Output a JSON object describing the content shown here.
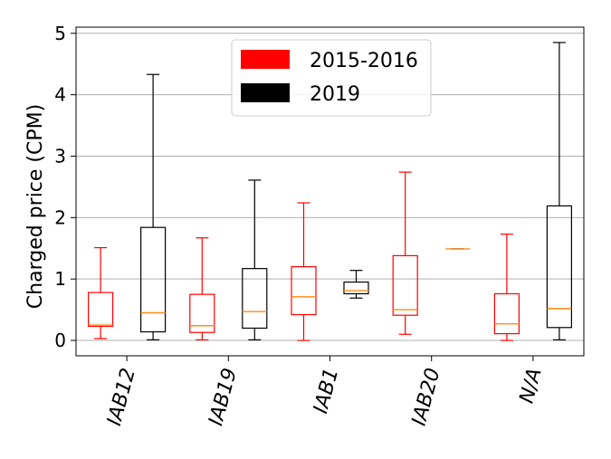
{
  "chart_data": {
    "type": "box",
    "ylabel": "Charged price (CPM)",
    "ylim": [
      -0.25,
      5.1
    ],
    "yticks": [
      0,
      1,
      2,
      3,
      4,
      5
    ],
    "grid": "y",
    "legend_position": "top-center",
    "median_color": "#ff8c1a",
    "categories": [
      "IAB12",
      "IAB19",
      "IAB1",
      "IAB20",
      "N/A"
    ],
    "series": [
      {
        "name": "2015-2016",
        "color": "#ff0000",
        "boxes": [
          {
            "whislo": 0.03,
            "q1": 0.23,
            "med": 0.25,
            "q3": 0.78,
            "whishi": 1.51
          },
          {
            "whislo": 0.01,
            "q1": 0.13,
            "med": 0.24,
            "q3": 0.75,
            "whishi": 1.67
          },
          {
            "whislo": 0.0,
            "q1": 0.42,
            "med": 0.71,
            "q3": 1.2,
            "whishi": 2.24
          },
          {
            "whislo": 0.1,
            "q1": 0.41,
            "med": 0.5,
            "q3": 1.38,
            "whishi": 2.74
          },
          {
            "whislo": 0.0,
            "q1": 0.11,
            "med": 0.27,
            "q3": 0.76,
            "whishi": 1.73
          }
        ]
      },
      {
        "name": "2019",
        "color": "#000000",
        "boxes": [
          {
            "whislo": 0.01,
            "q1": 0.14,
            "med": 0.45,
            "q3": 1.84,
            "whishi": 4.33
          },
          {
            "whislo": 0.01,
            "q1": 0.2,
            "med": 0.47,
            "q3": 1.17,
            "whishi": 2.61
          },
          {
            "whislo": 0.69,
            "q1": 0.76,
            "med": 0.81,
            "q3": 0.95,
            "whishi": 1.14
          },
          {
            "whislo": 1.49,
            "q1": 1.49,
            "med": 1.49,
            "q3": 1.49,
            "whishi": 1.49
          },
          {
            "whislo": 0.01,
            "q1": 0.21,
            "med": 0.52,
            "q3": 2.19,
            "whishi": 4.85
          }
        ]
      }
    ]
  }
}
